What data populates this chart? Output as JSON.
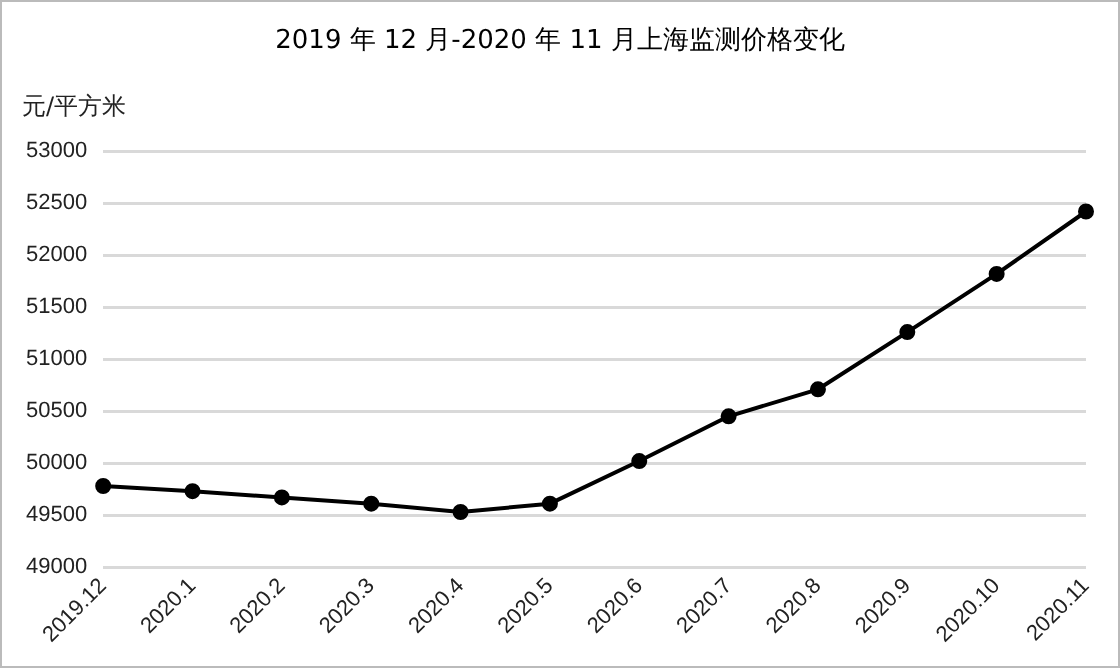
{
  "chart_data": {
    "type": "line",
    "title": "2019 年 12 月-2020 年 11 月上海监测价格变化",
    "ylabel": "元/平方米",
    "categories": [
      "2019.12",
      "2020.1",
      "2020.2",
      "2020.3",
      "2020.4",
      "2020.5",
      "2020.6",
      "2020.7",
      "2020.8",
      "2020.9",
      "2020.10",
      "2020.11"
    ],
    "series": [
      {
        "color": "#000000",
        "values": [
          49780,
          49730,
          49670,
          49610,
          49530,
          49610,
          50020,
          50450,
          50710,
          51260,
          51820,
          52420
        ]
      }
    ],
    "ylim": [
      49000,
      53000
    ],
    "yticks": [
      49000,
      49500,
      50000,
      50500,
      51000,
      51500,
      52000,
      52500,
      53000
    ],
    "grid": "y",
    "legend": false,
    "marker": "circle",
    "line_style": "solid"
  }
}
